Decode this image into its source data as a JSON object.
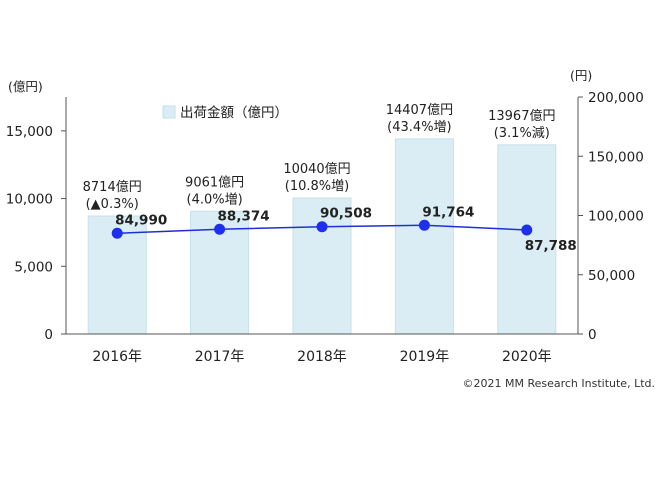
{
  "chart_data": {
    "type": "bar",
    "categories": [
      "2016年",
      "2017年",
      "2018年",
      "2019年",
      "2020年"
    ],
    "left_axis": {
      "unit": "(億円)",
      "ylim": [
        0,
        17500
      ],
      "ticks": [
        "0",
        "5,000",
        "10,000",
        "15,000"
      ],
      "tick_values": [
        0,
        5000,
        10000,
        15000
      ]
    },
    "right_axis": {
      "unit": "(円)",
      "ylim": [
        0,
        200000
      ],
      "ticks": [
        "0",
        "50,000",
        "100,000",
        "150,000",
        "200,000"
      ],
      "tick_values": [
        0,
        50000,
        100000,
        150000,
        200000
      ]
    },
    "series": [
      {
        "name": "出荷金額（億円）",
        "type": "bar",
        "axis": "left",
        "values": [
          8714,
          9061,
          10040,
          14407,
          13967
        ],
        "labels": [
          [
            "8714億円",
            "(▲0.3%)"
          ],
          [
            "9061億円",
            "(4.0%増)"
          ],
          [
            "10040億円",
            "(10.8%増)"
          ],
          [
            "14407億円",
            "(43.4%増)"
          ],
          [
            "13967億円",
            "(3.1%減)"
          ]
        ]
      },
      {
        "name": "",
        "type": "line",
        "axis": "right",
        "values": [
          84990,
          88374,
          90508,
          91764,
          87788
        ],
        "labels": [
          "84,990",
          "88,374",
          "90,508",
          "91,764",
          "87,788"
        ]
      }
    ],
    "legend": "top-left",
    "grid": false,
    "colors": {
      "bar_fill": "#dbedf4",
      "bar_stroke": "#c5e0ea",
      "line": "#1f2fd6",
      "marker": "#1e2ff0",
      "axis": "#555555",
      "text": "#222222"
    }
  },
  "copyright": "©2021 MM Research Institute, Ltd."
}
